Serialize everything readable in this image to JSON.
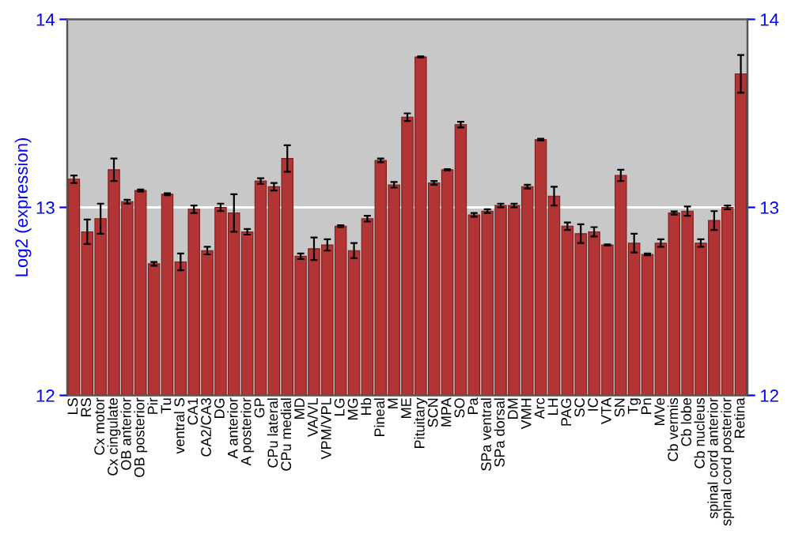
{
  "chart_data": {
    "type": "bar",
    "ylabel": "Log2 (expression)",
    "categories": [
      "LS",
      "RS",
      "Cx motor",
      "Cx cingulate",
      "OB anterior",
      "OB posterior",
      "Pir",
      "Tu",
      "ventral S",
      "CA1",
      "CA2/CA3",
      "DG",
      "A anterior",
      "A posterior",
      "GP",
      "CPu lateral",
      "CPu medial",
      "MD",
      "VA/VL",
      "VPM/VPL",
      "LG",
      "MG",
      "Hb",
      "Pineal",
      "M",
      "ME",
      "Pituitary",
      "SCN",
      "MPA",
      "SO",
      "Pa",
      "SPa ventral",
      "SPa dorsal",
      "DM",
      "VMH",
      "Arc",
      "LH",
      "PAG",
      "SC",
      "IC",
      "VTA",
      "SN",
      "Tg",
      "Pn",
      "MVe",
      "Cb vermis",
      "Cb lobe",
      "Cb nucleus",
      "spinal cord anterior",
      "spinal cord posterior",
      "Retina"
    ],
    "series": [
      {
        "color": "#b23434",
        "values": [
          13.15,
          12.87,
          12.94,
          13.2,
          13.03,
          13.09,
          12.7,
          13.07,
          12.71,
          12.99,
          12.77,
          13.0,
          12.97,
          12.87,
          13.14,
          13.11,
          13.26,
          12.74,
          12.78,
          12.8,
          12.9,
          12.77,
          12.94,
          13.25,
          13.12,
          13.48,
          13.8,
          13.13,
          13.2,
          13.44,
          12.96,
          12.98,
          13.01,
          13.01,
          13.11,
          13.36,
          13.06,
          12.9,
          12.86,
          12.87,
          12.8,
          13.17,
          12.81,
          12.75,
          12.81,
          12.97,
          12.98,
          12.81,
          12.93,
          13.0,
          13.71
        ],
        "errors": [
          0.02,
          0.065,
          0.08,
          0.06,
          0.01,
          0.005,
          0.01,
          0.005,
          0.045,
          0.02,
          0.02,
          0.02,
          0.1,
          0.015,
          0.015,
          0.02,
          0.07,
          0.015,
          0.06,
          0.03,
          0.005,
          0.04,
          0.015,
          0.01,
          0.015,
          0.02,
          0.003,
          0.01,
          0.003,
          0.015,
          0.01,
          0.01,
          0.01,
          0.01,
          0.01,
          0.005,
          0.05,
          0.02,
          0.05,
          0.025,
          0.003,
          0.03,
          0.05,
          0.005,
          0.02,
          0.008,
          0.025,
          0.02,
          0.05,
          0.01,
          0.1
        ]
      }
    ],
    "ylim": [
      12,
      14
    ],
    "yticks": [
      12,
      13,
      14
    ],
    "y2lim": [
      12,
      14
    ],
    "y2ticks": [
      12,
      13,
      14
    ],
    "grid": "y"
  }
}
